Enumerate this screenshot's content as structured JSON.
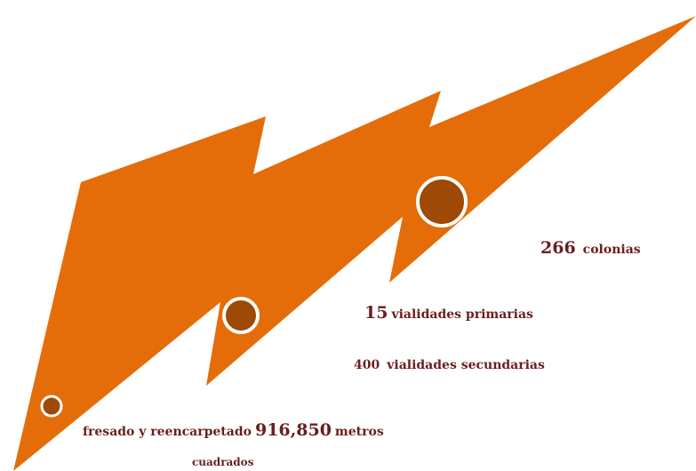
{
  "colors": {
    "bolt": "#e46d0a",
    "dot_fill": "#9c4a06",
    "dot_ring": "#ffffff",
    "text": "#6b1e1e"
  },
  "stats": {
    "colonias": {
      "number": "266",
      "label": "colonias"
    },
    "primarias": {
      "number": "15",
      "label": "vialidades primarias"
    },
    "secundarias": {
      "number": "400",
      "label": "vialidades secundarias"
    },
    "fresado": {
      "prefix": "fresado y reencarpetado",
      "number": "916,850",
      "suffix": "metros",
      "continuation": "cuadrados"
    }
  }
}
